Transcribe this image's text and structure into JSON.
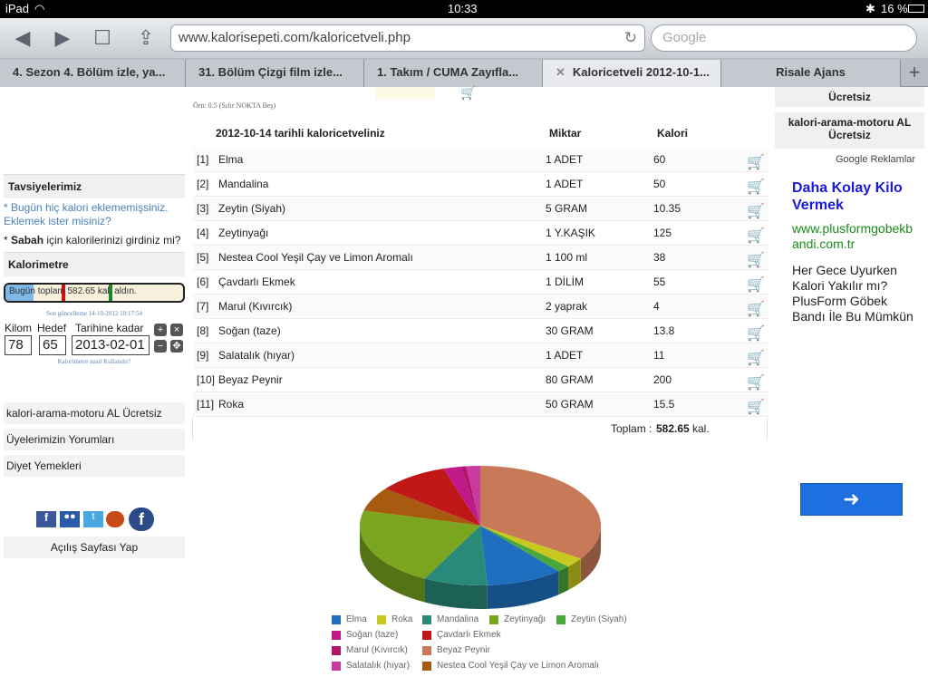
{
  "status": {
    "device": "iPad",
    "time": "10:33",
    "battery": "16 %"
  },
  "browser": {
    "url": "www.kalorisepeti.com/kaloricetveli.php",
    "search_placeholder": "Google",
    "tabs": [
      {
        "label": "4. Sezon 4. Bölüm izle, ya..."
      },
      {
        "label": "31. Bölüm Çizgi film izle..."
      },
      {
        "label": "1. Takım / CUMA Zayıfla..."
      },
      {
        "label": "Kaloricetveli 2012-10-1..."
      },
      {
        "label": "Risale Ajans"
      }
    ]
  },
  "top_note": "Örn: 0.5 (Sıfır NOKTA Beş)",
  "left": {
    "recommendations_title": "Tavsiyelerimiz",
    "rec1": "* Bugün hiç kalori eklememişsiniz. Eklemek ister misiniz?",
    "rec2_bold": "Sabah",
    "rec2_rest": "için kalorilerinizi girdiniz mi?",
    "calorimeter_title": "Kalorimetre",
    "gauge_text": "Bugün toplam 582.65 kal. aldın.",
    "gauge_fraction": 0.16,
    "updated": "Son güncelleme 14-10-2012 10:17:54",
    "kilo_label": "Kilom",
    "kilo_value": "78",
    "target_label": "Hedef",
    "target_value": "65",
    "date_label": "Tarihine kadar",
    "date_value": "2013-02-01",
    "help_link": "Kalorimetre nasıl Kullanılır?",
    "nav": [
      "kalori-arama-motoru AL Ücretsiz",
      "Üyelerimizin Yorumları",
      "Diyet Yemekleri"
    ],
    "homepage": "Açılış Sayfası Yap"
  },
  "table": {
    "title": "2012-10-14 tarihli kaloricetveliniz",
    "col_amount": "Miktar",
    "col_kcal": "Kalori",
    "rows": [
      {
        "idx": "[1]",
        "name": "Elma",
        "amount": "1 ADET",
        "kcal": "60"
      },
      {
        "idx": "[2]",
        "name": "Mandalina",
        "amount": "1 ADET",
        "kcal": "50"
      },
      {
        "idx": "[3]",
        "name": "Zeytin (Siyah)",
        "amount": "5 GRAM",
        "kcal": "10.35"
      },
      {
        "idx": "[4]",
        "name": "Zeytinyağı",
        "amount": "1 Y.KAŞIK",
        "kcal": "125"
      },
      {
        "idx": "[5]",
        "name": "Nestea Cool Yeşil Çay ve Limon Aromalı",
        "amount": "1 100 ml",
        "kcal": "38"
      },
      {
        "idx": "[6]",
        "name": "Çavdarlı Ekmek",
        "amount": "1 DİLİM",
        "kcal": "55"
      },
      {
        "idx": "[7]",
        "name": "Marul (Kıvırcık)",
        "amount": "2 yaprak",
        "kcal": "4"
      },
      {
        "idx": "[8]",
        "name": "Soğan (taze)",
        "amount": "30 GRAM",
        "kcal": "13.8"
      },
      {
        "idx": "[9]",
        "name": "Salatalık (hıyar)",
        "amount": "1 ADET",
        "kcal": "11"
      },
      {
        "idx": "[10]",
        "name": "Beyaz Peynir",
        "amount": "80 GRAM",
        "kcal": "200"
      },
      {
        "idx": "[11]",
        "name": "Roka",
        "amount": "50 GRAM",
        "kcal": "15.5"
      }
    ],
    "total_label": "Toplam :",
    "total_value": "582.65",
    "total_unit": "kal."
  },
  "right": {
    "box1": "Ücretsiz",
    "box2": "kalori-arama-motoru AL Ücretsiz",
    "ads_label": "Google Reklamlar",
    "ad_title": "Daha Kolay Kilo Vermek",
    "ad_url": "www.plusformgobekbandi.com.tr",
    "ad_body": "Her Gece Uyurken Kalori Yakılır mı? PlusForm Göbek Bandı İle Bu Mümkün"
  },
  "chart_data": {
    "type": "pie",
    "slices": [
      {
        "label": "Elma",
        "value": 60,
        "color": "#1f6fc0"
      },
      {
        "label": "Roka",
        "value": 15.5,
        "color": "#c8c81e"
      },
      {
        "label": "Mandalina",
        "value": 50,
        "color": "#2a8a7a"
      },
      {
        "label": "Zeytinyağı",
        "value": 125,
        "color": "#7aa51e"
      },
      {
        "label": "Zeytin (Siyah)",
        "value": 10.35,
        "color": "#4aa83a"
      },
      {
        "label": "Soğan (taze)",
        "value": 13.8,
        "color": "#c01a8a"
      },
      {
        "label": "Çavdarlı Ekmek",
        "value": 55,
        "color": "#c01818"
      },
      {
        "label": "Marul (Kıvırcık)",
        "value": 4,
        "color": "#b0166a"
      },
      {
        "label": "Beyaz Peynir",
        "value": 200,
        "color": "#c87a58"
      },
      {
        "label": "Salatalık (hıyar)",
        "value": 11,
        "color": "#c83aa0"
      },
      {
        "label": "Nestea Cool Yeşil Çay ve Limon Aromalı",
        "value": 38,
        "color": "#a85a10"
      }
    ]
  }
}
